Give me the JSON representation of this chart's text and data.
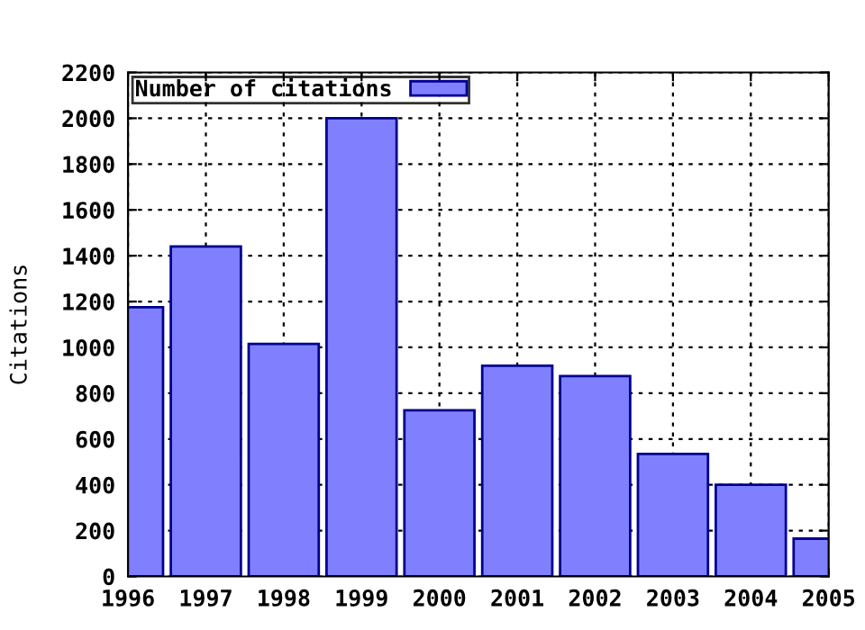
{
  "chart_data": {
    "type": "bar",
    "ylabel": "Citations",
    "x": [
      1996,
      1997,
      1998,
      1999,
      2000,
      2001,
      2002,
      2003,
      2004,
      2005
    ],
    "series": [
      {
        "name": "Number of citations",
        "color": "#8080ff",
        "values": [
          1175,
          1440,
          1015,
          2000,
          725,
          920,
          875,
          535,
          400,
          165
        ]
      }
    ],
    "xlim": [
      1996,
      2005
    ],
    "xticks": [
      1996,
      1997,
      1998,
      1999,
      2000,
      2001,
      2002,
      2003,
      2004,
      2005
    ],
    "ylim": [
      0,
      2200
    ],
    "yticks": [
      0,
      200,
      400,
      600,
      800,
      1000,
      1200,
      1400,
      1600,
      1800,
      2000,
      2200
    ],
    "grid": true,
    "legend": "top left"
  }
}
